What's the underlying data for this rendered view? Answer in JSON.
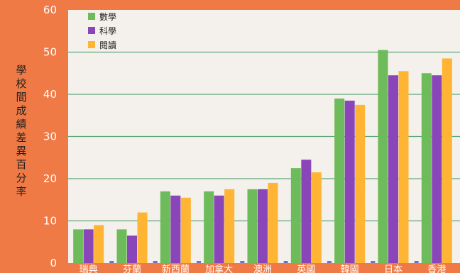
{
  "chart_data": {
    "type": "bar",
    "title": "",
    "xlabel": "",
    "ylabel": "學校間成績差異百分率",
    "ylim": [
      0,
      60
    ],
    "yticks": [
      0,
      10,
      20,
      30,
      40,
      50,
      60
    ],
    "grid": true,
    "legend_position": "top-left",
    "categories": [
      "瑞典",
      "芬蘭",
      "新西蘭",
      "加拿大",
      "澳洲",
      "英國",
      "韓國",
      "日本",
      "香港"
    ],
    "series": [
      {
        "name": "數學",
        "color": "#6dbb5a",
        "values": [
          8,
          8,
          17,
          17,
          17.5,
          22.5,
          39,
          50.5,
          45
        ]
      },
      {
        "name": "科學",
        "color": "#8a45b8",
        "values": [
          8,
          6.5,
          16,
          16,
          17.5,
          24.5,
          38.5,
          44.5,
          44.5
        ]
      },
      {
        "name": "閱讀",
        "color": "#ffb533",
        "values": [
          9,
          12,
          15.5,
          17.5,
          19,
          21.5,
          37.5,
          45.5,
          48.5
        ]
      }
    ]
  },
  "colors": {
    "page_background": "#f07a45",
    "plot_background": "#f4f0eb",
    "gridline": "#5fa87a"
  }
}
